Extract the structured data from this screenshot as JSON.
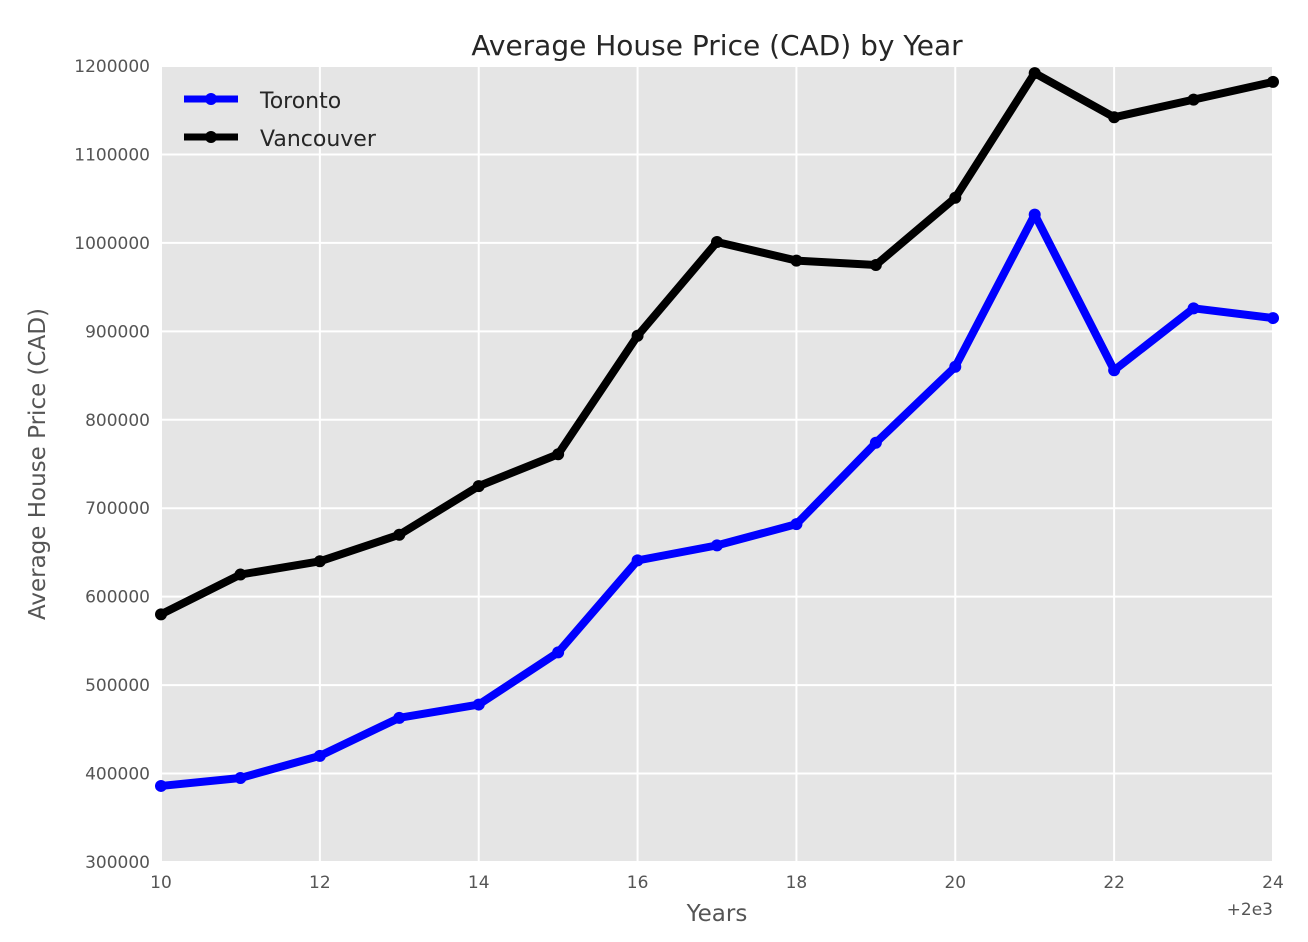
{
  "chart_data": {
    "type": "line",
    "title": "Average House Price (CAD) by Year",
    "xlabel": "Years",
    "ylabel": "Average House Price (CAD)",
    "x_offset_label": "+2e3",
    "x": [
      10,
      11,
      12,
      13,
      14,
      15,
      16,
      17,
      18,
      19,
      20,
      21,
      22,
      23,
      24
    ],
    "xlim": [
      10,
      24
    ],
    "ylim": [
      300000,
      1200000
    ],
    "x_ticks": [
      10,
      12,
      14,
      16,
      18,
      20,
      22,
      24
    ],
    "x_tick_labels": [
      "10",
      "12",
      "14",
      "16",
      "18",
      "20",
      "22",
      "24"
    ],
    "y_ticks": [
      300000,
      400000,
      500000,
      600000,
      700000,
      800000,
      900000,
      1000000,
      1100000,
      1200000
    ],
    "y_tick_labels": [
      "300000",
      "400000",
      "500000",
      "600000",
      "700000",
      "800000",
      "900000",
      "1000000",
      "1100000",
      "1200000"
    ],
    "grid": true,
    "legend_position": "top-left",
    "background_color": "#e5e5e5",
    "grid_color": "#ffffff",
    "series": [
      {
        "name": "Toronto",
        "color": "#0000ff",
        "values": [
          386000,
          395000,
          420000,
          463000,
          478000,
          537000,
          641000,
          658000,
          682000,
          774000,
          860000,
          1032000,
          856000,
          926000,
          915000
        ]
      },
      {
        "name": "Vancouver",
        "color": "#000000",
        "values": [
          580000,
          625000,
          640000,
          670000,
          725000,
          761000,
          895000,
          1001000,
          980000,
          975000,
          1051000,
          1192000,
          1142000,
          1162000,
          1182000
        ]
      }
    ]
  }
}
